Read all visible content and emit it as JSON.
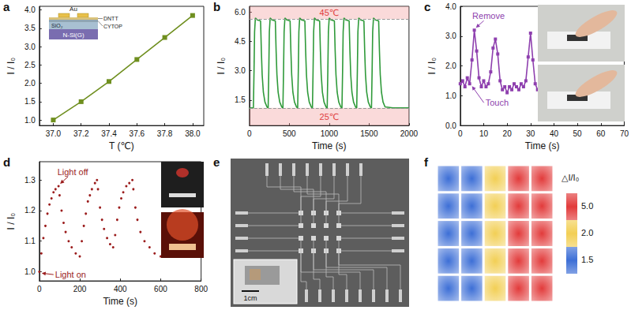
{
  "chart_data": [
    {
      "label": "a",
      "type": "line",
      "x_label": "T (℃)",
      "y_label": "I / I₀",
      "x": [
        37.0,
        37.2,
        37.4,
        37.6,
        37.8,
        38.0
      ],
      "series": [
        {
          "color": "#6f8f1f",
          "marker": "square",
          "line_style": "solid",
          "values": [
            1.0,
            1.5,
            2.05,
            2.65,
            3.25,
            3.85
          ]
        }
      ],
      "xlim": [
        36.9,
        38.08
      ],
      "xticks": [
        {
          "value": 37,
          "label": "37.0"
        },
        37.2,
        37.4,
        37.6,
        37.8,
        {
          "value": 38,
          "label": "38.0"
        }
      ],
      "ylim": [
        0.85,
        4.1
      ],
      "yticks": [
        {
          "value": 1,
          "label": "1.0"
        },
        1.5,
        {
          "value": 2,
          "label": "2.0"
        },
        2.5,
        {
          "value": 3,
          "label": "3.0"
        },
        3.5,
        {
          "value": 4,
          "label": "4.0"
        }
      ],
      "grid": false,
      "inset_labels": [
        "Au",
        "DNTT",
        "CYTOP",
        "SiO₂",
        "N-Si(G)"
      ]
    },
    {
      "label": "b",
      "type": "line",
      "x_label": "Time (s)",
      "y_label": "I / I₀",
      "x": [
        0,
        50,
        58,
        65,
        75,
        100,
        140,
        150,
        160,
        175,
        195,
        220,
        235,
        243,
        250,
        260,
        285,
        325,
        335,
        345,
        360,
        380,
        405,
        420,
        428,
        435,
        445,
        470,
        510,
        520,
        530,
        545,
        565,
        590,
        605,
        613,
        620,
        630,
        655,
        695,
        705,
        715,
        730,
        750,
        775,
        790,
        798,
        805,
        815,
        840,
        880,
        890,
        900,
        915,
        935,
        960,
        975,
        983,
        990,
        1000,
        1025,
        1065,
        1075,
        1085,
        1100,
        1120,
        1145,
        1160,
        1168,
        1175,
        1185,
        1210,
        1250,
        1260,
        1270,
        1285,
        1305,
        1330,
        1345,
        1353,
        1360,
        1370,
        1395,
        1435,
        1445,
        1455,
        1470,
        1490,
        1515,
        1530,
        1538,
        1545,
        1555,
        1580,
        1620,
        1630,
        1640,
        1655,
        1675,
        1700,
        1800,
        2000
      ],
      "series": [
        {
          "color": "#2f9a3a",
          "marker": "none",
          "line_style": "solid",
          "values": [
            1.1,
            1.1,
            3.0,
            5.0,
            5.7,
            5.6,
            5.55,
            4.0,
            2.8,
            1.9,
            1.4,
            1.15,
            1.1,
            3.0,
            5.0,
            5.7,
            5.6,
            5.55,
            4.0,
            2.8,
            1.9,
            1.4,
            1.15,
            1.1,
            3.0,
            5.0,
            5.7,
            5.6,
            5.55,
            4.0,
            2.8,
            1.9,
            1.4,
            1.15,
            1.1,
            3.0,
            5.0,
            5.7,
            5.6,
            5.55,
            4.0,
            2.8,
            1.9,
            1.4,
            1.15,
            1.1,
            3.0,
            5.0,
            5.7,
            5.6,
            5.55,
            4.0,
            2.8,
            1.9,
            1.4,
            1.15,
            1.1,
            3.0,
            5.0,
            5.7,
            5.6,
            5.55,
            4.0,
            2.8,
            1.9,
            1.4,
            1.15,
            1.1,
            3.0,
            5.0,
            5.7,
            5.6,
            5.55,
            4.0,
            2.8,
            1.9,
            1.4,
            1.15,
            1.1,
            3.0,
            5.0,
            5.7,
            5.6,
            5.55,
            4.0,
            2.8,
            1.9,
            1.4,
            1.15,
            1.1,
            3.0,
            5.0,
            5.7,
            5.6,
            5.55,
            4.0,
            2.8,
            1.9,
            1.4,
            1.15,
            1.1,
            1.1
          ]
        }
      ],
      "xlim": [
        0,
        2000
      ],
      "xticks": [
        0,
        500,
        1000,
        1500,
        2000
      ],
      "ylim": [
        0.2,
        6.3
      ],
      "yticks": [
        1.5,
        {
          "value": 3,
          "label": "3.0"
        },
        4.5,
        {
          "value": 6,
          "label": "6.0"
        }
      ],
      "grid": false,
      "bands": [
        {
          "label": "45℃",
          "from": 5.65
        },
        {
          "label": "25℃",
          "to": 1.1
        }
      ]
    },
    {
      "label": "c",
      "type": "line",
      "x_label": "Time (s)",
      "y_label": "I / I₀",
      "x": [
        0,
        1,
        2,
        3,
        4,
        5,
        6,
        7,
        8,
        9,
        10,
        11,
        12,
        13,
        14,
        15,
        16,
        17,
        18,
        19,
        20,
        21,
        22,
        23,
        24,
        25,
        26,
        27,
        28,
        29,
        30,
        31,
        32,
        33
      ],
      "series": [
        {
          "color": "#8e3fae",
          "marker": "square",
          "line_style": "solid",
          "values": [
            1.4,
            1.5,
            1.3,
            1.6,
            1.4,
            2.2,
            3.2,
            2.5,
            1.6,
            1.3,
            1.5,
            1.3,
            1.4,
            1.8,
            2.6,
            2.9,
            2.4,
            1.5,
            1.2,
            1.3,
            1.1,
            1.3,
            1.2,
            1.4,
            1.3,
            1.2,
            1.4,
            1.3,
            1.5,
            2.3,
            3.1,
            2.2,
            1.4,
            1.2
          ]
        }
      ],
      "xlim": [
        0,
        70
      ],
      "xticks": [
        0,
        10,
        20,
        30,
        40,
        50,
        60,
        70
      ],
      "ylim": [
        0,
        4
      ],
      "yticks": [
        {
          "value": 0,
          "label": "0.0"
        },
        {
          "value": 1,
          "label": "1.0"
        },
        {
          "value": 2,
          "label": "2.0"
        },
        {
          "value": 3,
          "label": "3.0"
        },
        {
          "value": 4,
          "label": "4.0"
        }
      ],
      "grid": false,
      "annotations": [
        {
          "text": "Touch",
          "x": 4,
          "y": 1.4
        },
        {
          "text": "Remove",
          "x": 6,
          "y": 3.2
        }
      ]
    },
    {
      "label": "d",
      "type": "line",
      "x_label": "Time (s)",
      "y_label": "I / I₀",
      "x": [
        0,
        10,
        20,
        30,
        40,
        50,
        60,
        70,
        80,
        95,
        100,
        110,
        120,
        130,
        145,
        160,
        180,
        200,
        210,
        220,
        230,
        240,
        250,
        260,
        275,
        285,
        290,
        300,
        310,
        320,
        335,
        350,
        365,
        375,
        385,
        395,
        405,
        415,
        430,
        445,
        460,
        465,
        475,
        485,
        500,
        520,
        545,
        570,
        600
      ],
      "series": [
        {
          "color": "#9b1c1c",
          "marker": "circle",
          "line_style": "none",
          "values": [
            1.0,
            1.06,
            1.11,
            1.15,
            1.19,
            1.22,
            1.24,
            1.26,
            1.27,
            1.28,
            1.25,
            1.2,
            1.16,
            1.13,
            1.1,
            1.08,
            1.06,
            1.05,
            1.1,
            1.15,
            1.19,
            1.23,
            1.25,
            1.27,
            1.29,
            1.3,
            1.27,
            1.21,
            1.17,
            1.14,
            1.11,
            1.09,
            1.08,
            1.12,
            1.17,
            1.21,
            1.24,
            1.26,
            1.28,
            1.29,
            1.3,
            1.27,
            1.21,
            1.17,
            1.13,
            1.1,
            1.08,
            1.06,
            1.05
          ]
        }
      ],
      "xlim": [
        0,
        800
      ],
      "xticks": [
        0,
        200,
        400,
        600,
        800
      ],
      "ylim": [
        0.97,
        1.36
      ],
      "yticks": [
        {
          "value": 1,
          "label": "1.0"
        },
        1.1,
        1.2,
        1.3
      ],
      "grid": false,
      "annotations": [
        {
          "text": "Light on",
          "x": 0,
          "y": 1.0
        },
        {
          "text": "Light off",
          "x": 95,
          "y": 1.28
        }
      ]
    },
    {
      "label": "e",
      "type": "photo",
      "scale_bar": "1cm"
    },
    {
      "label": "f",
      "type": "heatmap",
      "tick_labels": false,
      "cells": [
        [
          1.5,
          1.5,
          2.0,
          5.0,
          5.0
        ],
        [
          1.5,
          1.5,
          2.0,
          5.0,
          5.0
        ],
        [
          1.5,
          1.5,
          2.0,
          5.0,
          5.0
        ],
        [
          1.5,
          1.5,
          2.0,
          5.0,
          5.0
        ],
        [
          1.5,
          1.5,
          2.0,
          5.0,
          5.0
        ]
      ],
      "colorbar": {
        "title": "△I/I₀",
        "ticks": [
          1.5,
          {
            "value": 2,
            "label": "2.0"
          },
          {
            "value": 5,
            "label": "5.0"
          }
        ],
        "colors": [
          "#3d6fd6",
          "#f2cf55",
          "#e23b3b"
        ]
      }
    }
  ]
}
